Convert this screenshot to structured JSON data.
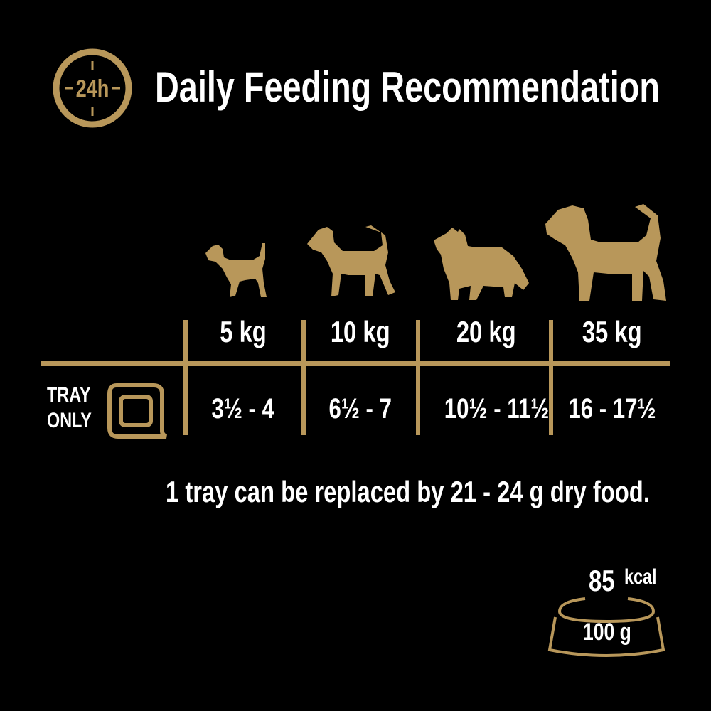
{
  "header": {
    "icon": "24h-clock-icon",
    "icon_text": "24h",
    "title": "Daily Feeding Recommendation"
  },
  "colors": {
    "gold": "#b8975a",
    "background": "#000000",
    "text": "#ffffff"
  },
  "table": {
    "columns": [
      {
        "dog_icon": "small-dog-icon",
        "weight": "5 kg",
        "value": "3½ - 4"
      },
      {
        "dog_icon": "terrier-dog-icon",
        "weight": "10 kg",
        "value": "6½ - 7"
      },
      {
        "dog_icon": "collie-dog-icon",
        "weight": "20 kg",
        "value": "10½ - 11½"
      },
      {
        "dog_icon": "large-dog-icon",
        "weight": "35 kg",
        "value": "16 - 17½"
      }
    ],
    "row_label_line1": "TRAY",
    "row_label_line2": "ONLY",
    "row_icon": "tray-icon"
  },
  "note": "1 tray can be replaced by 21 - 24 g dry food.",
  "bowl": {
    "icon": "bowl-icon",
    "kcal_value": "85",
    "kcal_unit": "kcal",
    "amount": "100 g"
  }
}
